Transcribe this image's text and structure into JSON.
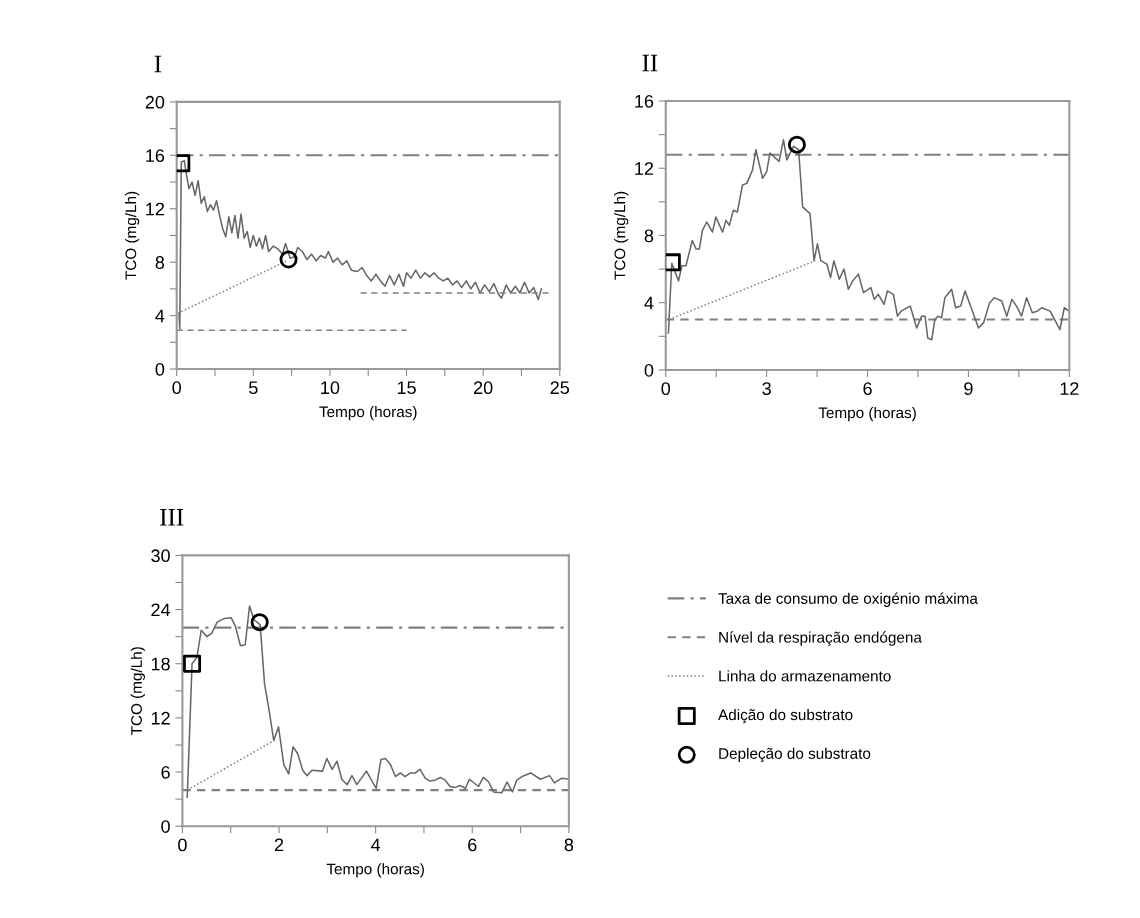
{
  "chart_data": [
    {
      "type": "line",
      "title": "I",
      "xlabel": "Tempo (horas)",
      "ylabel": "TCO (mg/Lh)",
      "xlim": [
        0,
        25
      ],
      "ylim": [
        0,
        20
      ],
      "xticks": [
        0,
        {
          "value": 2.5,
          "label": null
        },
        5,
        {
          "value": 7.5,
          "label": null
        },
        10,
        {
          "value": 12.5,
          "label": null
        },
        15,
        {
          "value": 17.5,
          "label": null
        },
        20,
        {
          "value": 22.5,
          "label": null
        },
        25
      ],
      "yticks": [
        0,
        {
          "value": 2,
          "label": null
        },
        4,
        {
          "value": 6,
          "label": null
        },
        8,
        {
          "value": 10,
          "label": null
        },
        12,
        {
          "value": 14,
          "label": null
        },
        16,
        {
          "value": 18,
          "label": null
        },
        20
      ],
      "grid": false,
      "legend": false,
      "ref_lines": [
        {
          "axis": "y",
          "value": 16,
          "color": "#808080",
          "line_style": "dashdot"
        }
      ],
      "series": [
        {
          "color": "#666666",
          "line_style": "solid",
          "marker": "none",
          "x": [
            0.15,
            0.2,
            0.3,
            0.5,
            0.6,
            0.8,
            1.0,
            1.2,
            1.4,
            1.6,
            1.8,
            2.0,
            2.2,
            2.4,
            2.6,
            2.8,
            3.0,
            3.2,
            3.4,
            3.6,
            3.8,
            4.0,
            4.2,
            4.4,
            4.6,
            4.8,
            5.0,
            5.2,
            5.4,
            5.6,
            5.8,
            6.0,
            6.3,
            6.6,
            6.9,
            7.1,
            7.4,
            7.7,
            7.9,
            8.2,
            8.5,
            8.8,
            9.1,
            9.4,
            9.7,
            9.9,
            10.2,
            10.5,
            10.8,
            11.1,
            11.4,
            11.8,
            12.1,
            12.4,
            12.7,
            13.0,
            13.3,
            13.6,
            13.9,
            14.2,
            14.5,
            14.8,
            15.0,
            15.3,
            15.6,
            15.9,
            16.2,
            16.5,
            16.8,
            17.1,
            17.4,
            17.7,
            18.0,
            18.3,
            18.6,
            18.9,
            19.2,
            19.5,
            19.8,
            20.1,
            20.4,
            20.7,
            21.0,
            21.2,
            21.5,
            21.8,
            22.1,
            22.4,
            22.7,
            23.0,
            23.3,
            23.6,
            23.8
          ],
          "values": [
            4.2,
            3,
            15.5,
            15.6,
            14.8,
            13.5,
            14,
            13,
            14.1,
            12.4,
            12.9,
            11.8,
            12.3,
            11.9,
            12.6,
            11.5,
            10.5,
            9.9,
            11.4,
            10.2,
            11.5,
            9.8,
            11.6,
            9.8,
            10.3,
            9.1,
            10.0,
            9.2,
            9.8,
            9.0,
            10.0,
            8.8,
            9.2,
            9.0,
            8.6,
            9.4,
            8.3,
            8.4,
            9.1,
            8.8,
            8.2,
            8.6,
            8.1,
            8.5,
            8.3,
            8.8,
            8.0,
            8.3,
            7.8,
            8.1,
            7.4,
            7.3,
            7.6,
            7.0,
            6.6,
            7.1,
            6.6,
            6.2,
            7.0,
            6.3,
            7.1,
            6.2,
            7.2,
            6.8,
            7.4,
            6.8,
            7.2,
            6.9,
            7.2,
            6.8,
            6.6,
            6.8,
            6.3,
            6.6,
            6.1,
            6.6,
            6.0,
            6.5,
            5.7,
            6.3,
            5.8,
            6.4,
            5.6,
            5.3,
            6.3,
            5.7,
            6.2,
            5.7,
            6.5,
            5.7,
            6.1,
            5.2,
            6.0
          ]
        },
        {
          "color": "#808080",
          "line_style": "dashed",
          "marker": "none",
          "x": [
            0,
            15
          ],
          "values": [
            2.9,
            2.9
          ]
        },
        {
          "color": "#808080",
          "line_style": "dashed",
          "marker": "none",
          "x": [
            12,
            24.3
          ],
          "values": [
            5.7,
            5.7
          ]
        },
        {
          "color": "#808080",
          "line_style": "dotted",
          "marker": "none",
          "x": [
            0.3,
            7.2
          ],
          "values": [
            4.3,
            8.1
          ]
        },
        {
          "type": "scatter",
          "color": "#000000",
          "marker": "square",
          "x": [
            0.3
          ],
          "values": [
            15.4
          ]
        },
        {
          "type": "scatter",
          "color": "#000000",
          "marker": "circle",
          "x": [
            7.3
          ],
          "values": [
            8.2
          ]
        }
      ]
    },
    {
      "type": "line",
      "title": "II",
      "xlabel": "Tempo (horas)",
      "ylabel": "TCO (mg/Lh)",
      "xlim": [
        0,
        12
      ],
      "ylim": [
        0,
        16
      ],
      "xticks": [
        0,
        {
          "value": 1.5,
          "label": null
        },
        3,
        {
          "value": 4.5,
          "label": null
        },
        6,
        {
          "value": 7.5,
          "label": null
        },
        9,
        {
          "value": 10.5,
          "label": null
        },
        12
      ],
      "yticks": [
        0,
        {
          "value": 2,
          "label": null
        },
        4,
        {
          "value": 6,
          "label": null
        },
        8,
        {
          "value": 10,
          "label": null
        },
        12,
        {
          "value": 14,
          "label": null
        },
        16
      ],
      "grid": false,
      "legend": false,
      "ref_lines": [
        {
          "axis": "y",
          "value": 12.8,
          "color": "#808080",
          "line_style": "dashdot"
        },
        {
          "axis": "y",
          "value": 3.0,
          "color": "#808080",
          "line_style": "dashed"
        }
      ],
      "series": [
        {
          "color": "#666666",
          "line_style": "solid",
          "marker": "none",
          "x": [
            0.08,
            0.18,
            0.38,
            0.48,
            0.6,
            0.79,
            0.9,
            1.0,
            1.09,
            1.22,
            1.39,
            1.49,
            1.69,
            1.79,
            1.89,
            2.01,
            2.13,
            2.28,
            2.41,
            2.58,
            2.68,
            2.88,
            3.0,
            3.1,
            3.37,
            3.5,
            3.6,
            3.8,
            3.95,
            4.07,
            4.29,
            4.41,
            4.51,
            4.61,
            4.79,
            4.9,
            5.0,
            5.16,
            5.3,
            5.43,
            5.56,
            5.73,
            5.88,
            6.1,
            6.2,
            6.32,
            6.49,
            6.59,
            6.77,
            6.89,
            7.0,
            7.27,
            7.46,
            7.61,
            7.71,
            7.79,
            7.91,
            8.0,
            8.1,
            8.2,
            8.3,
            8.5,
            8.62,
            8.77,
            8.9,
            9.1,
            9.3,
            9.45,
            9.63,
            9.77,
            9.99,
            10.14,
            10.29,
            10.43,
            10.58,
            10.73,
            10.9,
            11.05,
            11.18,
            11.43,
            11.72,
            11.85,
            12.0
          ],
          "values": [
            2.2,
            6.35,
            5.3,
            6.2,
            6.2,
            7.7,
            7.2,
            7.2,
            8.3,
            8.8,
            8.2,
            9.1,
            8.2,
            8.9,
            8.6,
            9.5,
            9.4,
            11.0,
            11.1,
            11.9,
            13.1,
            11.4,
            11.8,
            12.9,
            12.4,
            13.7,
            12.5,
            13.3,
            13.1,
            9.7,
            9.3,
            6.5,
            7.5,
            6.5,
            6.3,
            5.5,
            6.5,
            5.4,
            6.0,
            4.8,
            5.3,
            5.7,
            4.6,
            4.9,
            4.2,
            4.5,
            3.9,
            4.7,
            4.5,
            3.2,
            3.5,
            3.8,
            2.5,
            3.2,
            3.2,
            1.9,
            1.8,
            3.0,
            3.2,
            3.1,
            4.3,
            4.8,
            3.7,
            3.8,
            4.7,
            3.6,
            2.5,
            2.8,
            4.0,
            4.3,
            4.1,
            3.2,
            4.2,
            3.8,
            3.2,
            4.3,
            3.4,
            3.5,
            3.7,
            3.5,
            2.4,
            3.7,
            3.5
          ]
        },
        {
          "color": "#808080",
          "line_style": "dotted",
          "marker": "none",
          "x": [
            0.1,
            4.45
          ],
          "values": [
            3.0,
            6.5
          ]
        },
        {
          "type": "scatter",
          "color": "#000000",
          "marker": "square",
          "x": [
            0.18
          ],
          "values": [
            6.4
          ]
        },
        {
          "type": "scatter",
          "color": "#000000",
          "marker": "circle",
          "x": [
            3.9
          ],
          "values": [
            13.4
          ]
        }
      ]
    },
    {
      "type": "line",
      "title": "III",
      "xlabel": "Tempo (horas)",
      "ylabel": "TCO (mg/Lh)",
      "xlim": [
        0,
        8
      ],
      "ylim": [
        0,
        30
      ],
      "xticks": [
        0,
        {
          "value": 1,
          "label": null
        },
        2,
        {
          "value": 3,
          "label": null
        },
        4,
        {
          "value": 5,
          "label": null
        },
        6,
        {
          "value": 7,
          "label": null
        },
        8
      ],
      "yticks": [
        0,
        {
          "value": 3,
          "label": null
        },
        6,
        {
          "value": 9,
          "label": null
        },
        12,
        {
          "value": 15,
          "label": null
        },
        18,
        {
          "value": 21,
          "label": null
        },
        24,
        {
          "value": 27,
          "label": null
        },
        30
      ],
      "grid": false,
      "legend": "right",
      "ref_lines": [
        {
          "axis": "y",
          "value": 22,
          "label": "Taxa de consumo de oxigénio máxima",
          "color": "#808080",
          "line_style": "dashdot"
        },
        {
          "axis": "y",
          "value": 4.0,
          "label": "Nível da respiração endógena",
          "color": "#808080",
          "line_style": "dashed"
        }
      ],
      "series": [
        {
          "color": "#666666",
          "line_style": "solid",
          "marker": "none",
          "x": [
            0.1,
            0.2,
            0.3,
            0.39,
            0.51,
            0.61,
            0.72,
            0.86,
            1.01,
            1.1,
            1.2,
            1.3,
            1.39,
            1.48,
            1.61,
            1.7,
            1.79,
            1.89,
            1.99,
            2.1,
            2.2,
            2.29,
            2.39,
            2.49,
            2.58,
            2.68,
            2.9,
            2.99,
            3.1,
            3.2,
            3.3,
            3.41,
            3.51,
            3.61,
            3.81,
            4.01,
            4.11,
            4.2,
            4.3,
            4.41,
            4.51,
            4.61,
            4.72,
            4.82,
            4.92,
            5.03,
            5.13,
            5.23,
            5.34,
            5.44,
            5.54,
            5.65,
            5.75,
            5.86,
            5.94,
            6.13,
            6.23,
            6.34,
            6.44,
            6.61,
            6.72,
            6.83,
            6.92,
            7.03,
            7.21,
            7.41,
            7.6,
            7.7,
            7.85,
            8.0
          ],
          "values": [
            3.2,
            18.0,
            18.7,
            21.7,
            21.0,
            21.4,
            22.6,
            23.0,
            23.1,
            22.1,
            20.0,
            20.1,
            24.4,
            22.9,
            22.3,
            15.8,
            13.0,
            9.5,
            11.0,
            6.8,
            5.8,
            8.8,
            8.0,
            6.2,
            5.6,
            6.2,
            6.1,
            7.5,
            6.3,
            7.2,
            5.2,
            4.6,
            5.6,
            4.6,
            6.1,
            4.2,
            7.4,
            7.5,
            6.9,
            5.5,
            5.9,
            5.5,
            5.9,
            5.9,
            6.3,
            5.3,
            5.0,
            5.1,
            5.4,
            5.1,
            4.4,
            4.3,
            4.5,
            4.2,
            5.2,
            4.4,
            5.4,
            4.9,
            3.8,
            3.7,
            4.9,
            3.8,
            5.1,
            5.5,
            5.9,
            5.2,
            5.6,
            4.8,
            5.3,
            5.2
          ]
        },
        {
          "name": "Linha do armazenamento",
          "color": "#808080",
          "line_style": "dotted",
          "marker": "none",
          "x": [
            0.1,
            1.9
          ],
          "values": [
            4.0,
            9.5
          ]
        },
        {
          "name": "Adição do substrato",
          "type": "scatter",
          "color": "#000000",
          "marker": "square",
          "x": [
            0.2
          ],
          "values": [
            18.0
          ]
        },
        {
          "name": "Depleção do substrato",
          "type": "scatter",
          "color": "#000000",
          "marker": "circle",
          "x": [
            1.6
          ],
          "values": [
            22.6
          ]
        }
      ]
    }
  ]
}
